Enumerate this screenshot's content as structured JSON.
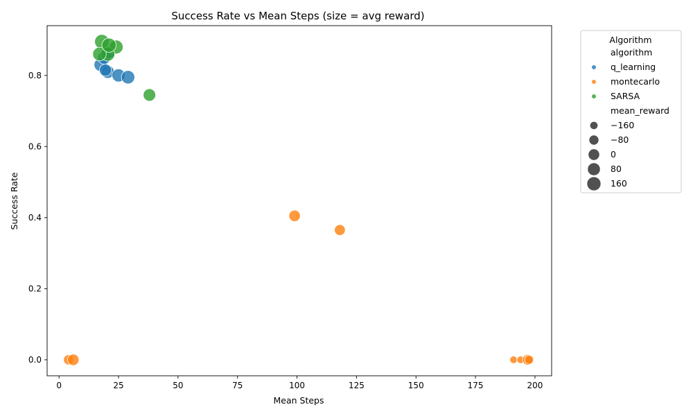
{
  "chart_data": {
    "type": "scatter",
    "title": "Success Rate vs Mean Steps (size = avg reward)",
    "xlabel": "Mean Steps",
    "ylabel": "Success Rate",
    "xlim": [
      -5,
      207
    ],
    "ylim": [
      -0.045,
      0.94
    ],
    "x_ticks": [
      0,
      25,
      50,
      75,
      100,
      125,
      150,
      175,
      200
    ],
    "y_ticks": [
      0.0,
      0.2,
      0.4,
      0.6,
      0.8
    ],
    "grid": false,
    "legend": {
      "title": "Algorithm",
      "placement": "outside-right",
      "hue_title": "algorithm",
      "size_title": "mean_reward",
      "size_entries": [
        {
          "label": "−160",
          "value": -160
        },
        {
          "label": "−80",
          "value": -80
        },
        {
          "label": "0",
          "value": 0
        },
        {
          "label": "80",
          "value": 80
        },
        {
          "label": "160",
          "value": 160
        }
      ]
    },
    "size_domain": [
      -200,
      200
    ],
    "series": [
      {
        "name": "q_learning",
        "color": "#1f77b4",
        "points": [
          {
            "x": 17.5,
            "y": 0.83,
            "reward": 110
          },
          {
            "x": 19.0,
            "y": 0.85,
            "reward": 95
          },
          {
            "x": 20.5,
            "y": 0.81,
            "reward": 90
          },
          {
            "x": 25.0,
            "y": 0.8,
            "reward": 100
          },
          {
            "x": 29.0,
            "y": 0.795,
            "reward": 120
          },
          {
            "x": 19.5,
            "y": 0.815,
            "reward": 40
          },
          {
            "x": 21.0,
            "y": 0.865,
            "reward": 60
          }
        ]
      },
      {
        "name": "montecarlo",
        "color": "#ff7f0e",
        "points": [
          {
            "x": 99.0,
            "y": 0.405,
            "reward": 0
          },
          {
            "x": 118.0,
            "y": 0.365,
            "reward": -30
          },
          {
            "x": 4.0,
            "y": 0.0,
            "reward": -70
          },
          {
            "x": 6.0,
            "y": 0.0,
            "reward": 0
          },
          {
            "x": 191.0,
            "y": 0.0,
            "reward": -180
          },
          {
            "x": 194.0,
            "y": 0.0,
            "reward": -180
          },
          {
            "x": 197.0,
            "y": 0.0,
            "reward": -40
          },
          {
            "x": 197.5,
            "y": 0.0,
            "reward": -130
          }
        ]
      },
      {
        "name": "SARSA",
        "color": "#2ca02c",
        "points": [
          {
            "x": 18.0,
            "y": 0.895,
            "reward": 190
          },
          {
            "x": 24.0,
            "y": 0.88,
            "reward": 150
          },
          {
            "x": 20.5,
            "y": 0.86,
            "reward": 160
          },
          {
            "x": 17.0,
            "y": 0.86,
            "reward": 130
          },
          {
            "x": 21.0,
            "y": 0.885,
            "reward": 180
          },
          {
            "x": 38.0,
            "y": 0.745,
            "reward": 60
          }
        ]
      }
    ]
  }
}
